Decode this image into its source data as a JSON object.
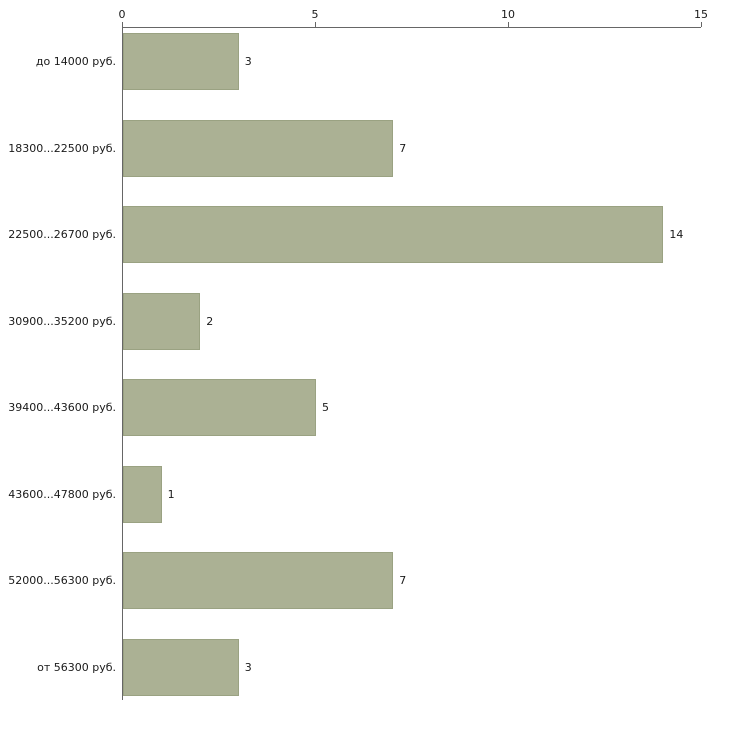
{
  "chart_data": {
    "type": "bar",
    "orientation": "horizontal",
    "title": "",
    "xlabel": "",
    "ylabel": "",
    "categories": [
      "до 14000 руб.",
      "18300...22500 руб.",
      "22500...26700 руб.",
      "30900...35200 руб.",
      "39400...43600 руб.",
      "43600...47800 руб.",
      "52000...56300 руб.",
      "от 56300 руб."
    ],
    "values": [
      3,
      7,
      14,
      2,
      5,
      1,
      7,
      3
    ],
    "value_labels": [
      "3",
      "7",
      "14",
      "2",
      "5",
      "1",
      "7",
      "3"
    ],
    "x_ticks": [
      0,
      5,
      10,
      15
    ],
    "x_tick_labels": [
      "0",
      "5",
      "10",
      "15"
    ],
    "xlim": [
      0,
      15
    ],
    "grid": false,
    "legend": "none",
    "colors": {
      "bar_fill": "#abb194",
      "bar_border": "#9aa282",
      "axis": "#666666",
      "text": "#1a1a1a",
      "background": "#ffffff"
    }
  }
}
